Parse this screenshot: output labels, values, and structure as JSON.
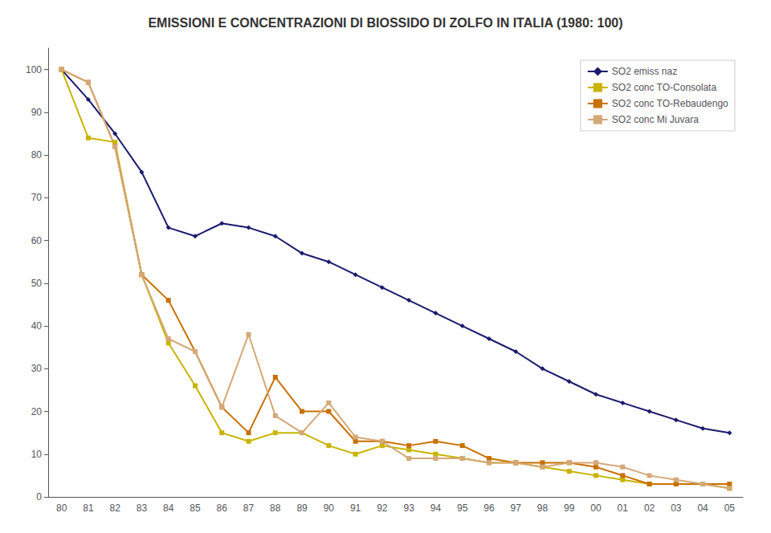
{
  "chart_data": {
    "type": "line",
    "title": "EMISSIONI E CONCENTRAZIONI DI BIOSSIDO DI ZOLFO IN ITALIA (1980: 100)",
    "categories": [
      "80",
      "81",
      "82",
      "83",
      "84",
      "85",
      "86",
      "87",
      "88",
      "89",
      "90",
      "91",
      "92",
      "93",
      "94",
      "95",
      "96",
      "97",
      "98",
      "99",
      "00",
      "01",
      "02",
      "03",
      "04",
      "05"
    ],
    "series": [
      {
        "name": "SO2 emiss naz",
        "color": "#1a1a6e",
        "marker": "diamond",
        "values": [
          100,
          93,
          85,
          76,
          63,
          61,
          64,
          63,
          61,
          57,
          55,
          52,
          49,
          46,
          43,
          40,
          37,
          34,
          30,
          27,
          24,
          22,
          20,
          18,
          16,
          15
        ]
      },
      {
        "name": "SO2 conc TO-Consolata",
        "color": "#c8b400",
        "marker": "square",
        "values": [
          100,
          84,
          83,
          52,
          36,
          26,
          15,
          13,
          15,
          15,
          12,
          10,
          12,
          11,
          10,
          9,
          8,
          8,
          7,
          6,
          5,
          4,
          3,
          3,
          3,
          2
        ]
      },
      {
        "name": "SO2 conc TO-Rebaudengo",
        "color": "#c87000",
        "marker": "square",
        "values": [
          100,
          97,
          82,
          52,
          46,
          34,
          21,
          15,
          28,
          20,
          20,
          13,
          13,
          12,
          13,
          12,
          9,
          8,
          8,
          8,
          7,
          5,
          3,
          3,
          3,
          3
        ]
      },
      {
        "name": "SO2 conc Mi Juvara",
        "color": "#d4a878",
        "marker": "square",
        "values": [
          100,
          97,
          82,
          52,
          37,
          34,
          21,
          38,
          19,
          15,
          22,
          14,
          13,
          9,
          9,
          9,
          8,
          8,
          7,
          8,
          8,
          7,
          5,
          4,
          3,
          2
        ]
      }
    ],
    "ylim": [
      0,
      105
    ],
    "yticks": [
      0,
      10,
      20,
      30,
      40,
      50,
      60,
      70,
      80,
      90,
      100
    ],
    "grid": false,
    "legend": "upper right"
  }
}
